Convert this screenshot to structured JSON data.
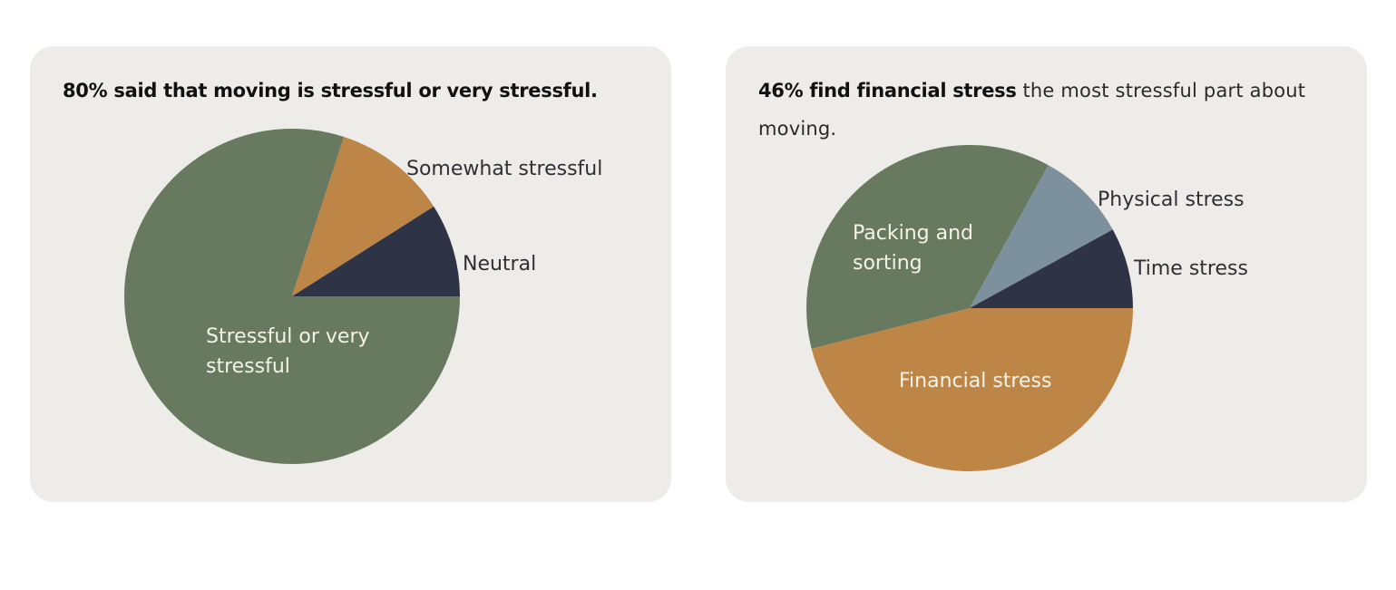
{
  "colors": {
    "background": "#ffffff",
    "card": "#eeece8",
    "green": "#677a5f",
    "orange": "#bd8646",
    "navy": "#2e3446",
    "slate": "#7d909e",
    "text_dark": "#2f3035",
    "text_light": "#f5f2ea"
  },
  "cards": [
    {
      "title_bold": "80% said that moving is stressful or very stressful.",
      "title_rest": ""
    },
    {
      "title_bold": "46% find financial stress",
      "title_rest": " the most stressful part about moving."
    }
  ],
  "chart_data": [
    {
      "type": "pie",
      "title": "80% said that moving is stressful or very stressful.",
      "start": "3 o'clock, clockwise",
      "slices": [
        {
          "label": "Stressful or very stressful",
          "value": 80,
          "color": "#677a5f",
          "label_position": "inside"
        },
        {
          "label": "Somewhat stressful",
          "value": 11,
          "color": "#bd8646",
          "label_position": "outside"
        },
        {
          "label": "Neutral",
          "value": 9,
          "color": "#2e3446",
          "label_position": "outside"
        }
      ]
    },
    {
      "type": "pie",
      "title": "46% find financial stress the most stressful part about moving.",
      "start": "3 o'clock, clockwise",
      "slices": [
        {
          "label": "Financial stress",
          "value": 46,
          "color": "#bd8646",
          "label_position": "inside"
        },
        {
          "label": "Packing and sorting",
          "value": 37,
          "color": "#677a5f",
          "label_position": "inside"
        },
        {
          "label": "Physical stress",
          "value": 9,
          "color": "#7d909e",
          "label_position": "outside"
        },
        {
          "label": "Time stress",
          "value": 8,
          "color": "#2e3446",
          "label_position": "outside"
        }
      ]
    }
  ]
}
